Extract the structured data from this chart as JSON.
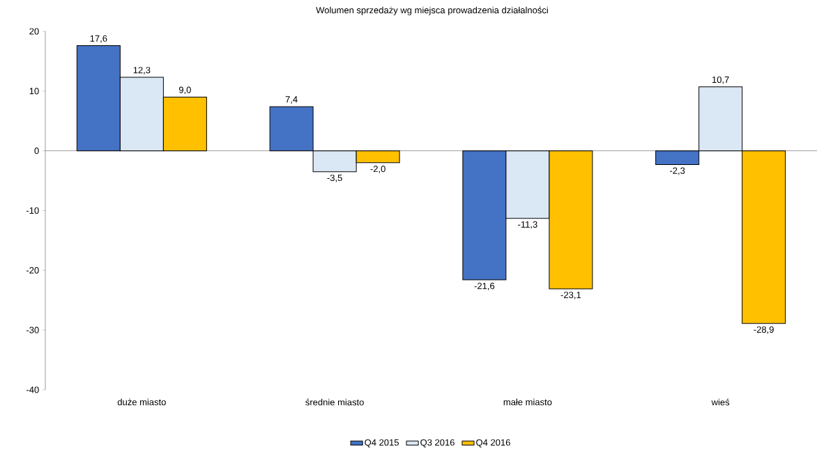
{
  "chart_data": {
    "type": "bar",
    "title": "Wolumen sprzedaży wg miejsca prowadzenia działalności",
    "categories": [
      "duże miasto",
      "średnie miasto",
      "małe miasto",
      "wieś"
    ],
    "series": [
      {
        "name": "Q4 2015",
        "color": "#4472c4",
        "values": [
          17.6,
          7.4,
          -21.6,
          -2.3
        ],
        "value_labels": [
          "17,6",
          "7,4",
          "-21,6",
          "-2,3"
        ]
      },
      {
        "name": "Q3 2016",
        "color": "#dae7f5",
        "values": [
          12.3,
          -3.5,
          -11.3,
          10.7
        ],
        "value_labels": [
          "12,3",
          "-3,5",
          "-11,3",
          "10,7"
        ]
      },
      {
        "name": "Q4 2016",
        "color": "#ffc000",
        "values": [
          9.0,
          -2.0,
          -23.1,
          -28.9
        ],
        "value_labels": [
          "9,0",
          "-2,0",
          "-23,1",
          "-28,9"
        ]
      }
    ],
    "ylim": [
      -40,
      20
    ],
    "yticks": [
      -40,
      -30,
      -20,
      -10,
      0,
      10,
      20
    ],
    "legend": "bottom"
  }
}
